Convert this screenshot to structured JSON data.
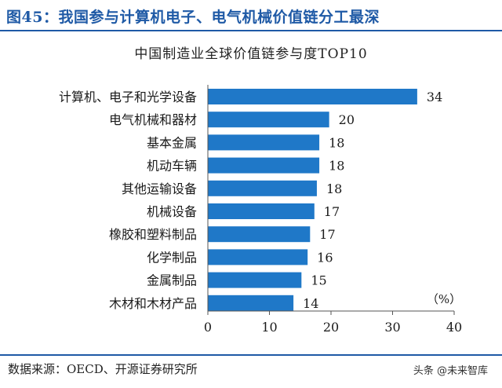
{
  "figure": {
    "title": "图45：我国参与计算机电子、电气机械价值链分工最深",
    "source": "数据来源：OECD、开源证券研究所",
    "watermark": "头条 @未来智库"
  },
  "colors": {
    "accent": "#1f5aa6",
    "bar": "#1f78c8"
  },
  "chart_data": {
    "type": "bar",
    "orientation": "horizontal",
    "title": "中国制造业全球价值链参与度TOP10",
    "unit_label": "（%）",
    "categories": [
      "计算机、电子和光学设备",
      "电气机械和器材",
      "基本金属",
      "机动车辆",
      "其他运输设备",
      "机械设备",
      "橡胶和塑料制品",
      "化学制品",
      "金属制品",
      "木材和木材产品"
    ],
    "values": [
      34,
      20,
      18,
      18,
      18,
      17,
      17,
      16,
      15,
      14
    ],
    "data_labels": [
      "34",
      "20",
      "18",
      "18",
      "18",
      "17",
      "17",
      "16",
      "15",
      "14"
    ],
    "bar_lengths": [
      34,
      19.7,
      18.1,
      18.1,
      17.7,
      17.3,
      16.6,
      16.2,
      15.2,
      13.9
    ],
    "xlim": [
      0,
      40
    ],
    "xticks": [
      0,
      10,
      20,
      30,
      40
    ],
    "grid": false,
    "legend": "none"
  }
}
